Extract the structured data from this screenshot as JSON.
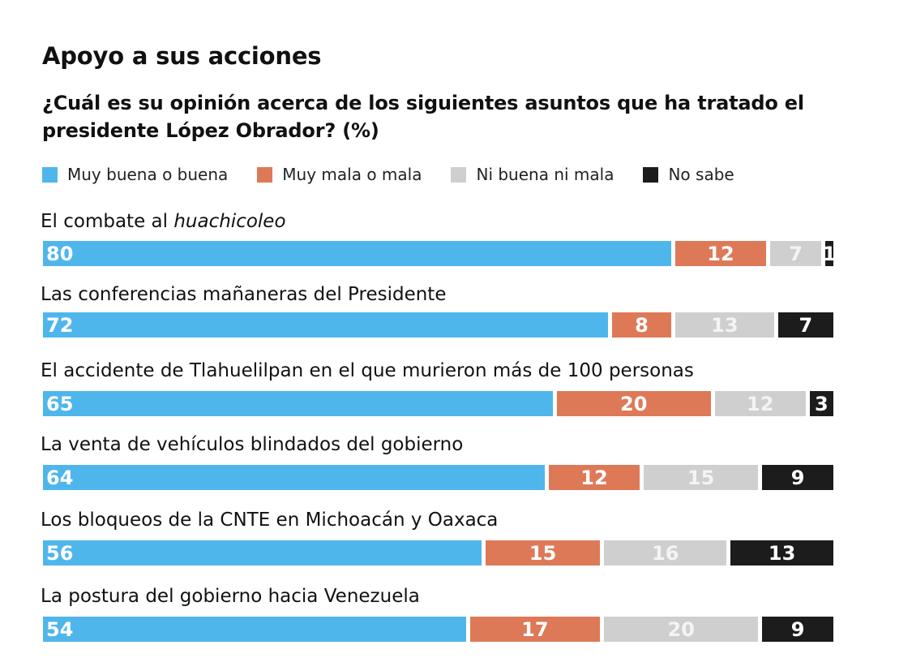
{
  "title": "Apoyo a sus acciones",
  "subtitle": "¿Cuál es su opinión acerca de los siguientes asuntos que ha tratado el presidente López Obrador? (%)",
  "chart_data": {
    "type": "bar",
    "orientation": "horizontal",
    "stacked": true,
    "categories": [
      "El combate al huachicoleo",
      "Las conferencias mañaneras del Presidente",
      "El accidente de Tlahuelilpan en el que murieron más de 100 personas",
      "La venta de vehículos blindados del gobierno",
      "Los bloqueos de la CNTE en Michoacán y Oaxaca",
      "La postura del gobierno hacia Venezuela"
    ],
    "category_prefix_0": "El combate al ",
    "category_italic_0": "huachicoleo",
    "series": [
      {
        "name": "Muy buena o buena",
        "color": "#4fb6ec",
        "text_color": "#ffffff",
        "values": [
          80,
          72,
          65,
          64,
          56,
          54
        ]
      },
      {
        "name": "Muy mala o mala",
        "color": "#de7957",
        "text_color": "#ffffff",
        "values": [
          12,
          8,
          20,
          12,
          15,
          17
        ]
      },
      {
        "name": "Ni buena ni mala",
        "color": "#cfcfcf",
        "text_color": "#f4f4f4",
        "values": [
          7,
          13,
          12,
          15,
          16,
          20
        ]
      },
      {
        "name": "No sabe",
        "color": "#1c1c1c",
        "text_color": "#ffffff",
        "values": [
          1,
          7,
          3,
          9,
          13,
          9
        ]
      }
    ],
    "xlim": [
      0,
      100
    ],
    "legend_position": "top"
  }
}
